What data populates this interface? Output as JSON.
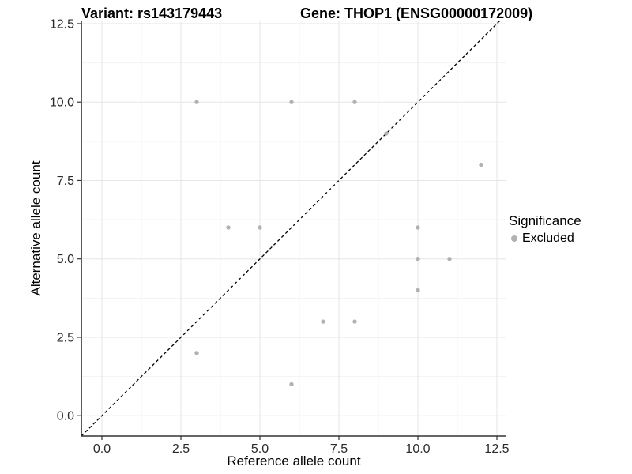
{
  "figure": {
    "background": "#ffffff"
  },
  "chart_data": {
    "type": "scatter",
    "title_left": "Variant: rs143179443",
    "title_right": "Gene: THOP1 (ENSG00000172009)",
    "xlabel": "Reference allele count",
    "ylabel": "Alternative allele count",
    "x_ticks": [
      0,
      2.5,
      5,
      7.5,
      10,
      12.5
    ],
    "x_tick_labels": [
      "0.0",
      "2.5",
      "5.0",
      "7.5",
      "10.0",
      "12.5"
    ],
    "y_ticks": [
      0,
      2.5,
      5,
      7.5,
      10,
      12.5
    ],
    "y_tick_labels": [
      "0.0",
      "2.5",
      "5.0",
      "7.5",
      "10.0",
      "12.5"
    ],
    "x_range": [
      -0.65,
      12.8
    ],
    "y_range": [
      -0.65,
      12.6
    ],
    "grid": true,
    "legend": {
      "title": "Significance",
      "position": "right",
      "items": [
        {
          "label": "Excluded",
          "color": "#b2b2b2"
        }
      ]
    },
    "reference_line": {
      "type": "identity",
      "slope": 1,
      "intercept": 0,
      "style": "dashed",
      "color": "#000000"
    },
    "series": [
      {
        "name": "Excluded",
        "color": "#b2b2b2",
        "marker": "circle",
        "points": [
          [
            3,
            10
          ],
          [
            6,
            10
          ],
          [
            8,
            10
          ],
          [
            9,
            9
          ],
          [
            12,
            8
          ],
          [
            4,
            6
          ],
          [
            5,
            6
          ],
          [
            10,
            6
          ],
          [
            10,
            5
          ],
          [
            11,
            5
          ],
          [
            10,
            4
          ],
          [
            7,
            3
          ],
          [
            8,
            3
          ],
          [
            3,
            2
          ],
          [
            6,
            1
          ]
        ]
      }
    ],
    "colors": {
      "grid_major": "#e6e6e6",
      "grid_minor": "#f3f3f3",
      "axis_line": "#333333",
      "tick_label": "#2b2b2b",
      "point": "#b2b2b2"
    }
  }
}
